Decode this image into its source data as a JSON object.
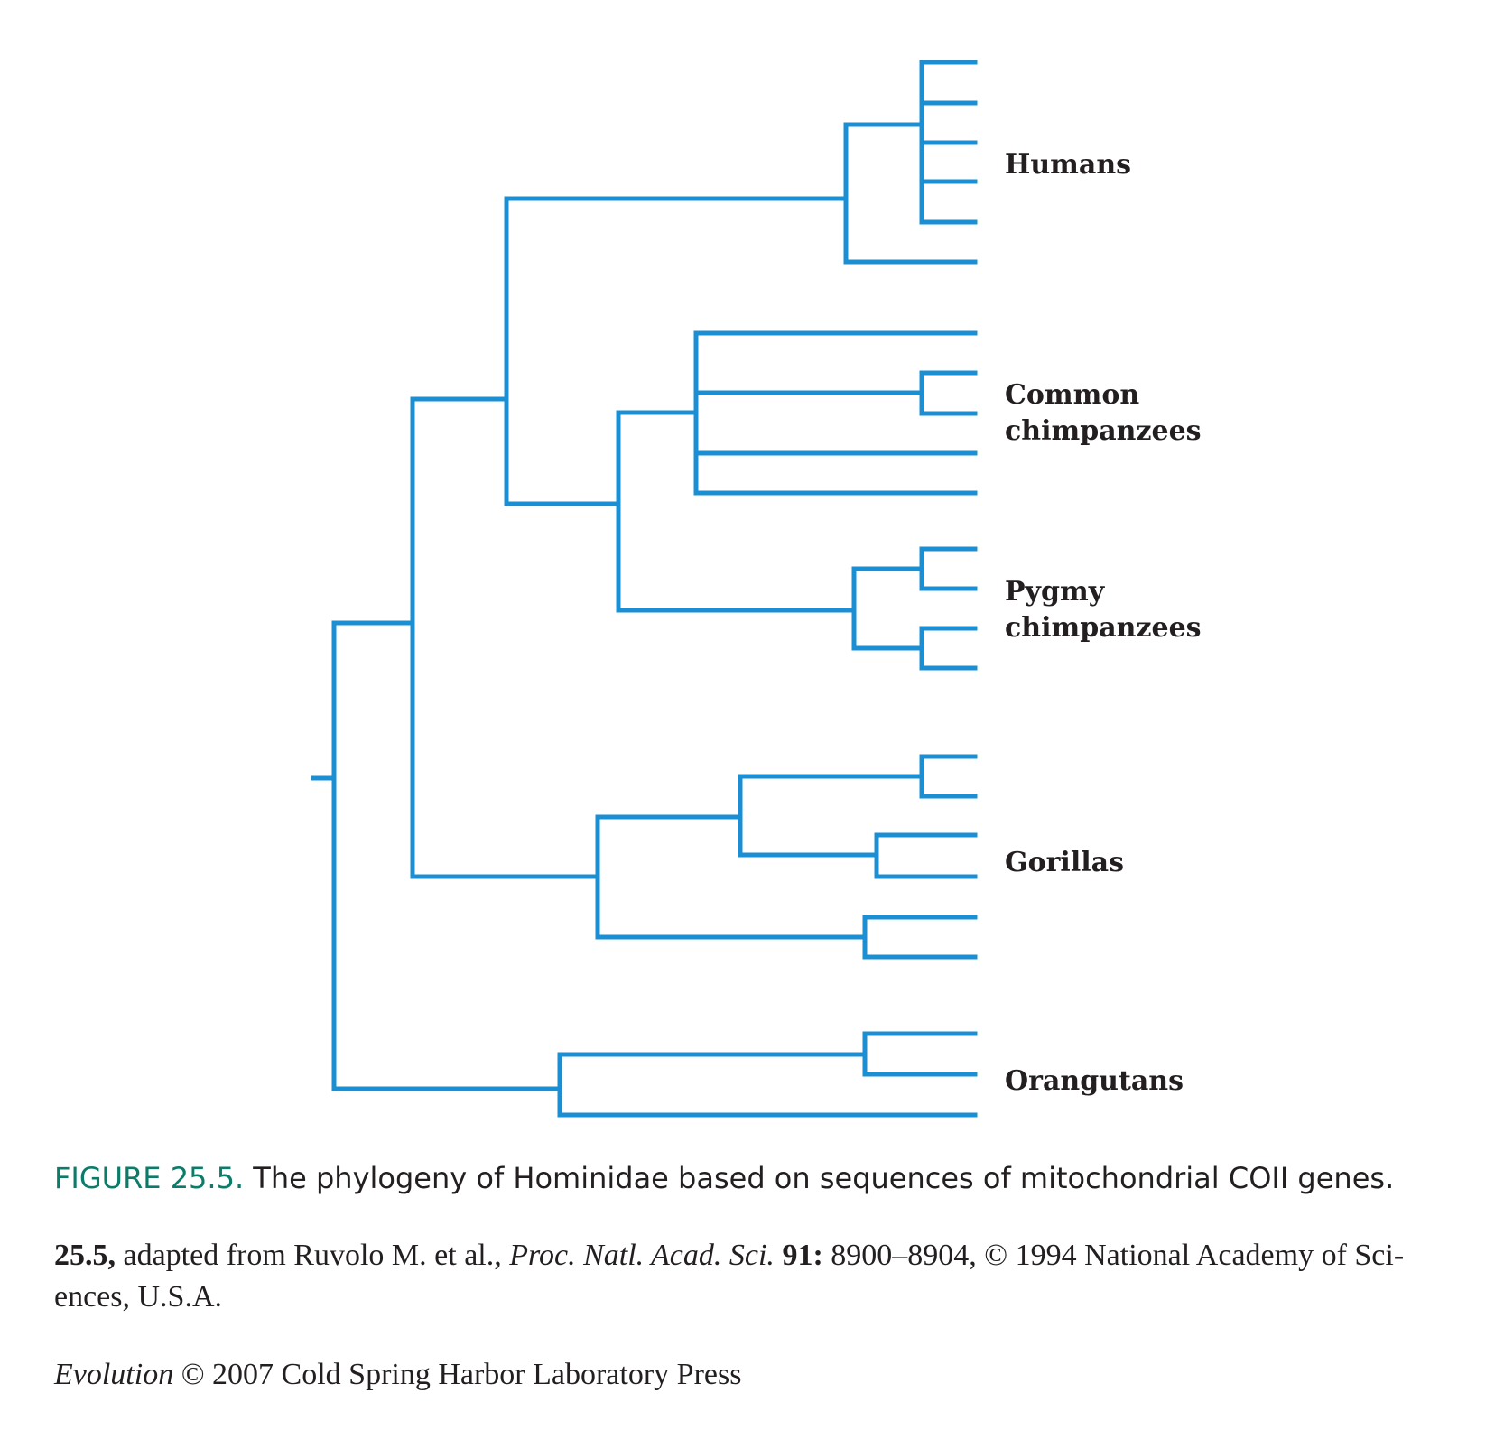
{
  "diagram": {
    "type": "phylogenetic-tree",
    "branch_color": "#1b8fd3",
    "clade_labels": {
      "humans": "Humans",
      "common_chimpanzees": [
        "Common",
        "chimpanzees"
      ],
      "pygmy_chimpanzees": [
        "Pygmy",
        "chimpanzees"
      ],
      "gorillas": "Gorillas",
      "orangutans": "Orangutans"
    }
  },
  "caption": {
    "figure_number": "FIGURE 25.5.",
    "text": "The phylogeny of Hominidae based on sequences of mitochondrial COII genes.",
    "color": "#0b7c69"
  },
  "credit": {
    "fig_ref": "25.5,",
    "text_a": " adapted from Ruvolo M. et al., ",
    "journal": "Proc. Natl. Acad. Sci.",
    "volume": "91:",
    "text_b": " 8900–8904, © 1994 National Academy of Sci-ences, U.S.A."
  },
  "publisher": {
    "book": "Evolution",
    "text": " © 2007 Cold Spring Harbor Laboratory Press"
  }
}
